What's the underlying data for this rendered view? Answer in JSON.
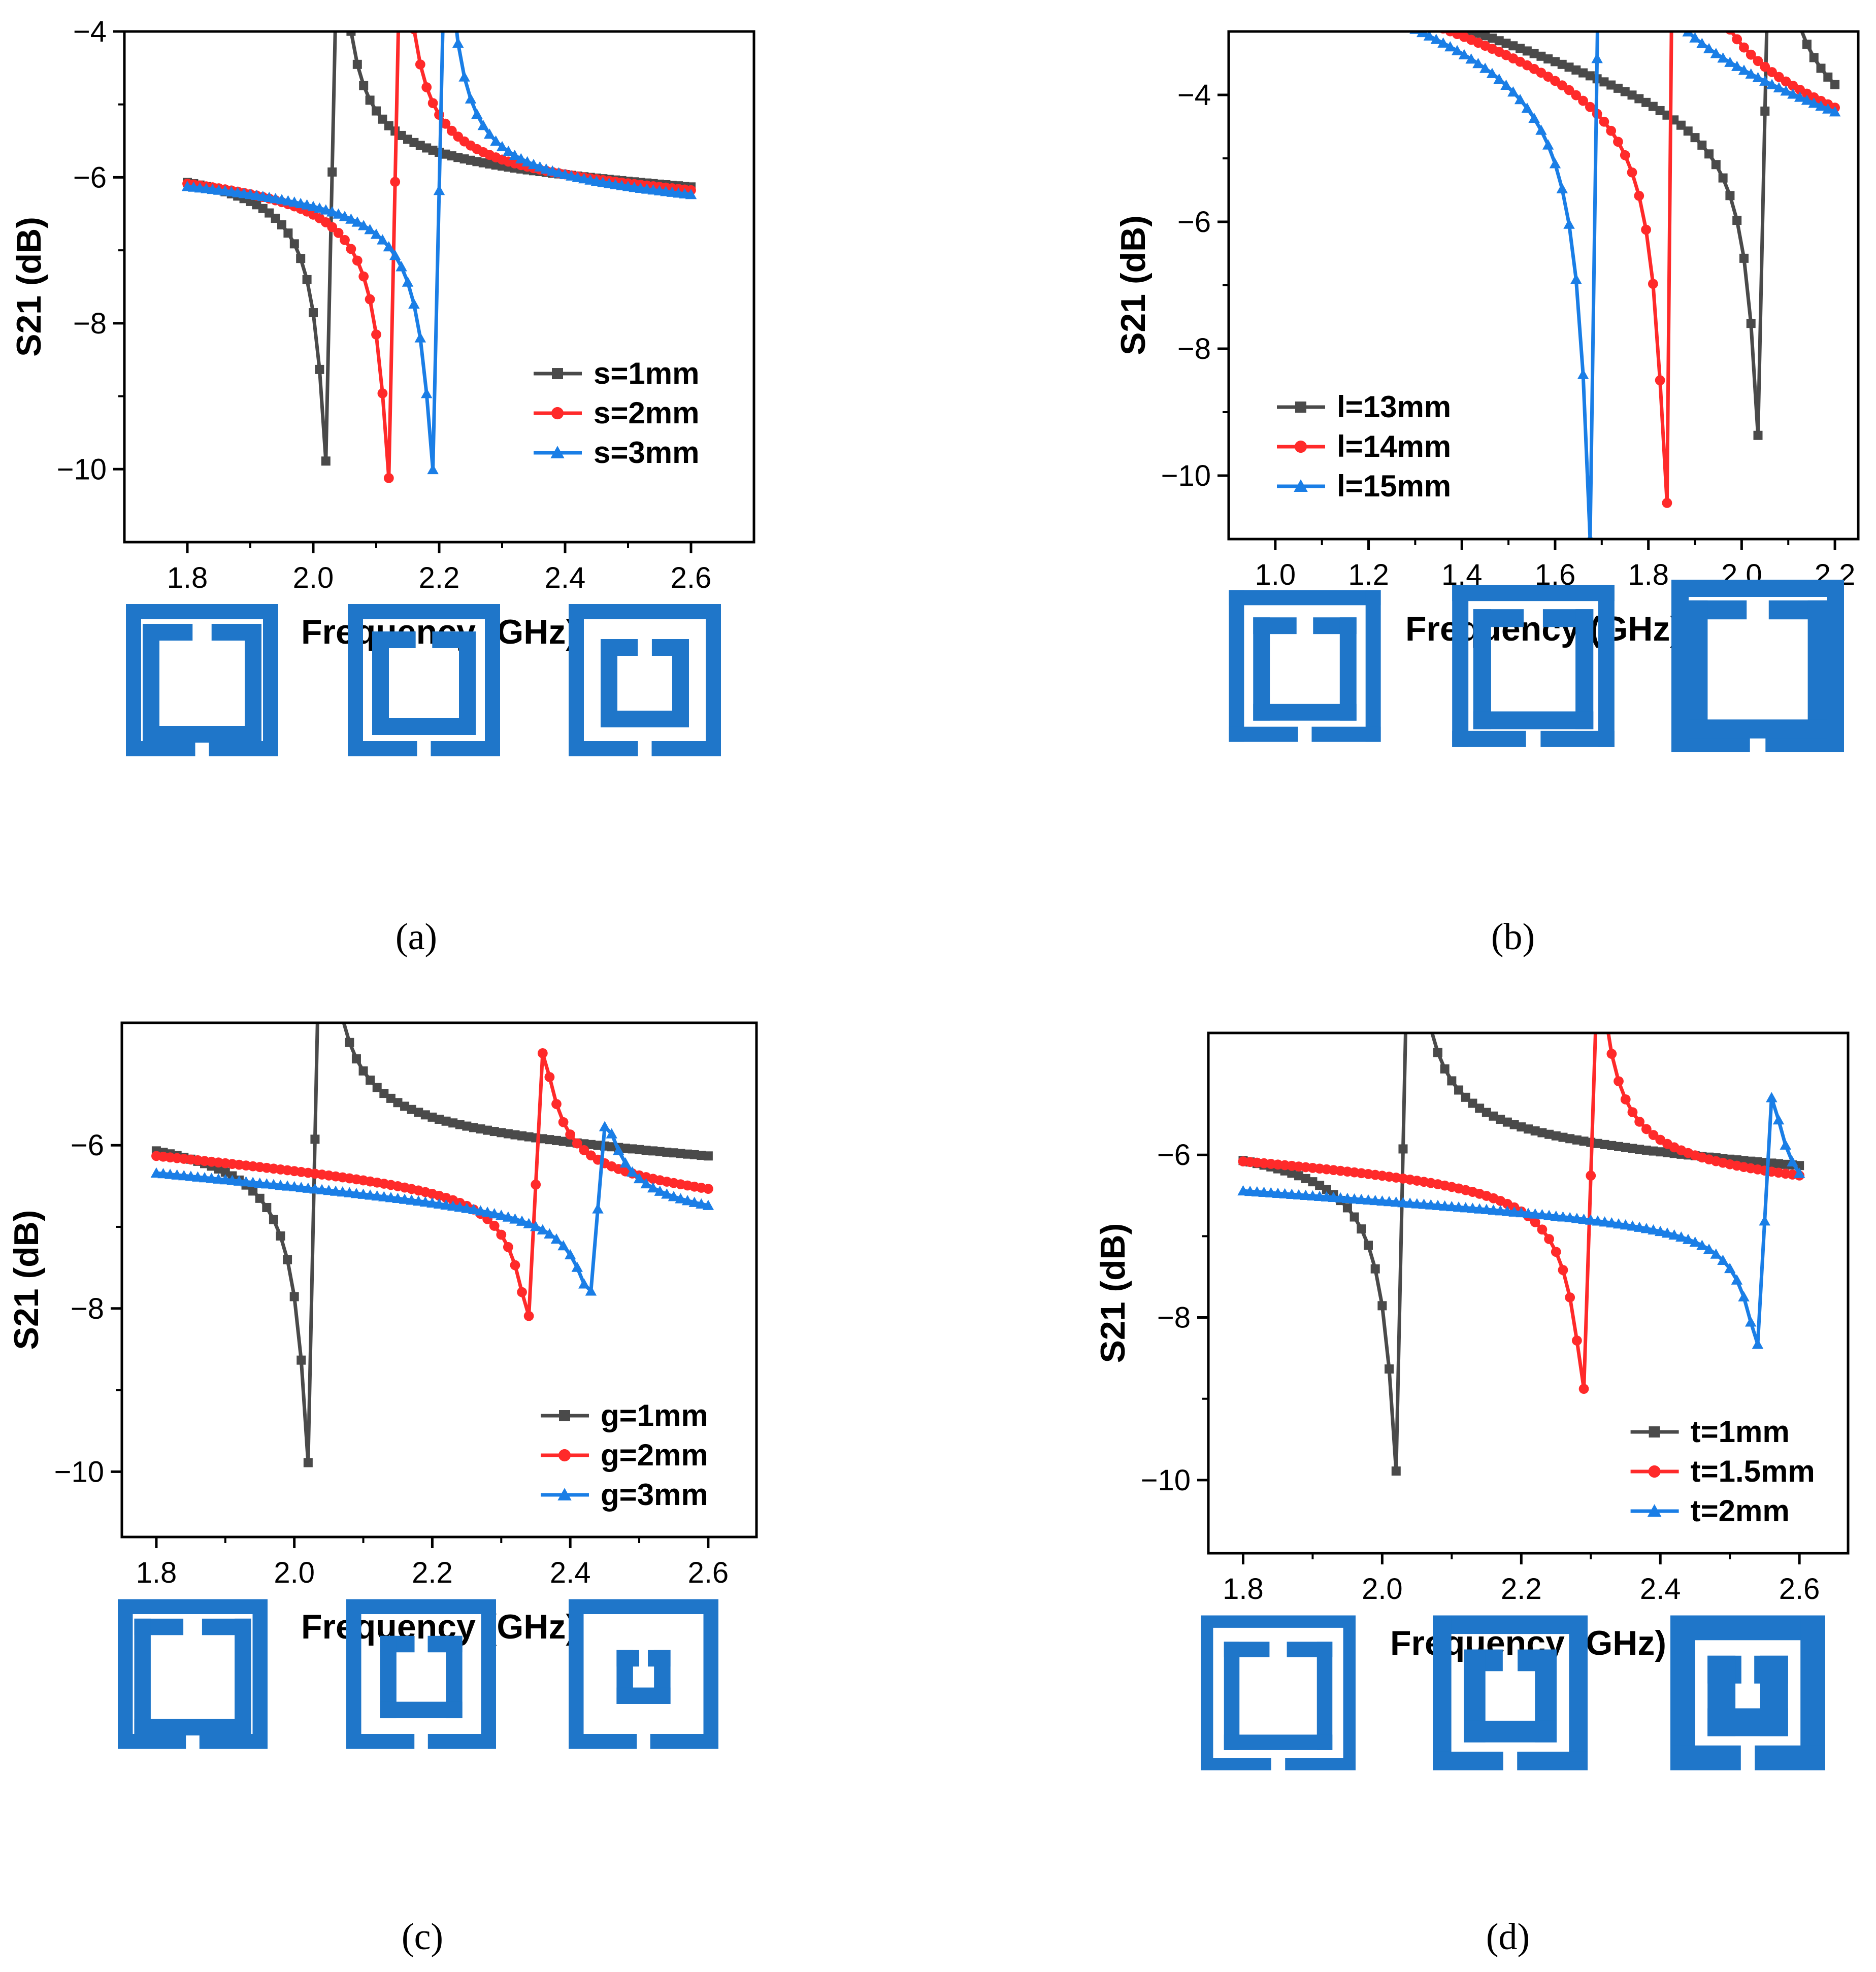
{
  "colors": {
    "series": [
      "#4a4a4a",
      "#ff2a2a",
      "#1a7ee6"
    ],
    "srr": "#1f76c9",
    "axis": "#000000"
  },
  "chart_data": [
    {
      "id": "a",
      "type": "line",
      "caption": "(a)",
      "xlabel": "Frequency (GHz)",
      "ylabel": "S21 (dB)",
      "xlim": [
        1.7,
        2.7
      ],
      "ylim": [
        -11,
        -4
      ],
      "xticks": [
        1.8,
        2.0,
        2.2,
        2.4,
        2.6
      ],
      "xtick_labels": [
        "1.8",
        "2.0",
        "2.2",
        "2.4",
        "2.6"
      ],
      "yticks": [
        -10,
        -8,
        -6,
        -4
      ],
      "ytick_labels": [
        "−10",
        "−8",
        "−6",
        "−4"
      ],
      "legend_position": "center-right",
      "series": [
        {
          "name": "s=1mm",
          "marker": "square",
          "x_range": [
            1.8,
            2.6
          ],
          "offset": -6.02,
          "res": 2.03,
          "A": 0.062,
          "gamma": 0.0075,
          "slope": -0.55
        },
        {
          "name": "s=2mm",
          "marker": "circle",
          "x_range": [
            1.8,
            2.6
          ],
          "offset": -6.1,
          "res": 2.13,
          "A": 0.068,
          "gamma": 0.0082,
          "slope": -0.55
        },
        {
          "name": "s=3mm",
          "marker": "triangle",
          "x_range": [
            1.8,
            2.6
          ],
          "offset": -6.18,
          "res": 2.2,
          "A": 0.066,
          "gamma": 0.0085,
          "slope": -0.55
        }
      ],
      "srr_variants": [
        {
          "outer": 1.0,
          "trace": 0.1,
          "gap": 0.12,
          "inner": 0.78,
          "itrace": 0.11
        },
        {
          "outer": 1.0,
          "trace": 0.1,
          "gap": 0.17,
          "inner": 0.68,
          "itrace": 0.11
        },
        {
          "outer": 1.0,
          "trace": 0.1,
          "gap": 0.22,
          "inner": 0.58,
          "itrace": 0.11
        }
      ]
    },
    {
      "id": "b",
      "type": "line",
      "caption": "(b)",
      "xlabel": "Frequency (GHz)",
      "ylabel": "S21 (dB)",
      "xlim": [
        0.9,
        2.25
      ],
      "ylim": [
        -11,
        -3
      ],
      "xticks": [
        1.0,
        1.2,
        1.4,
        1.6,
        1.8,
        2.0,
        2.2
      ],
      "xtick_labels": [
        "1.0",
        "1.2",
        "1.4",
        "1.6",
        "1.8",
        "2.0",
        "2.2"
      ],
      "yticks": [
        -10,
        -8,
        -6,
        -4
      ],
      "ytick_labels": [
        "−10",
        "−8",
        "−6",
        "−4"
      ],
      "legend_position": "bottom-left",
      "series": [
        {
          "name": "l=13mm",
          "marker": "square",
          "x_range": [
            1.0,
            2.2
          ],
          "offset": -4.6,
          "res": 2.05,
          "A": 0.115,
          "gamma": 0.0105,
          "slope": -2.3
        },
        {
          "name": "l=14mm",
          "marker": "circle",
          "x_range": [
            1.0,
            2.2
          ],
          "offset": -4.6,
          "res": 1.85,
          "A": 0.14,
          "gamma": 0.0105,
          "slope": -2.3
        },
        {
          "name": "l=15mm",
          "marker": "triangle",
          "x_range": [
            1.0,
            2.2
          ],
          "offset": -4.6,
          "res": 1.69,
          "A": 0.17,
          "gamma": 0.0105,
          "slope": -2.3
        }
      ],
      "srr_variants": [
        {
          "outer": 0.88,
          "trace": 0.1,
          "gap": 0.12,
          "inner": 0.68,
          "itrace": 0.11
        },
        {
          "outer": 0.94,
          "trace": 0.1,
          "gap": 0.12,
          "inner": 0.74,
          "itrace": 0.11
        },
        {
          "outer": 1.0,
          "trace": 0.1,
          "gap": 0.12,
          "inner": 0.8,
          "itrace": 0.11
        }
      ]
    },
    {
      "id": "c",
      "type": "line",
      "caption": "(c)",
      "xlabel": "Frequency (GHz)",
      "ylabel": "S21 (dB)",
      "xlim": [
        1.75,
        2.67
      ],
      "ylim": [
        -10.8,
        -4.5
      ],
      "xticks": [
        1.8,
        2.0,
        2.2,
        2.4,
        2.6
      ],
      "xtick_labels": [
        "1.8",
        "2.0",
        "2.2",
        "2.4",
        "2.6"
      ],
      "yticks": [
        -10,
        -8,
        -6
      ],
      "ytick_labels": [
        "−10",
        "−8",
        "−6"
      ],
      "legend_position": "bottom-right",
      "series": [
        {
          "name": "g=1mm",
          "marker": "square",
          "x_range": [
            1.8,
            2.6
          ],
          "offset": -6.02,
          "res": 2.03,
          "A": 0.062,
          "gamma": 0.0075,
          "slope": -0.55
        },
        {
          "name": "g=2mm",
          "marker": "circle",
          "x_range": [
            1.8,
            2.6
          ],
          "offset": -6.37,
          "res": 2.35,
          "A": 0.034,
          "gamma": 0.0105,
          "slope": -0.75
        },
        {
          "name": "g=3mm",
          "marker": "triangle",
          "x_range": [
            1.8,
            2.6
          ],
          "offset": -6.6,
          "res": 2.44,
          "A": 0.026,
          "gamma": 0.0125,
          "slope": -0.75
        }
      ],
      "srr_variants": [
        {
          "outer": 1.0,
          "trace": 0.1,
          "gap": 0.12,
          "inner": 0.78,
          "itrace": 0.11
        },
        {
          "outer": 1.0,
          "trace": 0.1,
          "gap": 0.22,
          "inner": 0.55,
          "itrace": 0.11
        },
        {
          "outer": 1.0,
          "trace": 0.1,
          "gap": 0.32,
          "inner": 0.36,
          "itrace": 0.11
        }
      ]
    },
    {
      "id": "d",
      "type": "line",
      "caption": "(d)",
      "xlabel": "Frequency (GHz)",
      "ylabel": "S21 (dB)",
      "xlim": [
        1.75,
        2.67
      ],
      "ylim": [
        -10.9,
        -4.5
      ],
      "xticks": [
        1.8,
        2.0,
        2.2,
        2.4,
        2.6
      ],
      "xtick_labels": [
        "1.8",
        "2.0",
        "2.2",
        "2.4",
        "2.6"
      ],
      "yticks": [
        -10,
        -8,
        -6
      ],
      "ytick_labels": [
        "−10",
        "−8",
        "−6"
      ],
      "legend_position": "bottom-right",
      "series": [
        {
          "name": "t=1mm",
          "marker": "square",
          "x_range": [
            1.8,
            2.6
          ],
          "offset": -6.02,
          "res": 2.03,
          "A": 0.062,
          "gamma": 0.0075,
          "slope": -0.55
        },
        {
          "name": "t=1.5mm",
          "marker": "circle",
          "x_range": [
            1.8,
            2.6
          ],
          "offset": -6.2,
          "res": 2.3,
          "A": 0.05,
          "gamma": 0.0095,
          "slope": -0.55
        },
        {
          "name": "t=2mm",
          "marker": "triangle",
          "x_range": [
            1.8,
            2.6
          ],
          "offset": -6.62,
          "res": 2.55,
          "A": 0.032,
          "gamma": 0.0105,
          "slope": -0.55
        }
      ],
      "srr_variants": [
        {
          "outer": 1.0,
          "trace": 0.08,
          "gap": 0.15,
          "inner": 0.7,
          "itrace": 0.1
        },
        {
          "outer": 1.0,
          "trace": 0.12,
          "gap": 0.2,
          "inner": 0.6,
          "itrace": 0.14
        },
        {
          "outer": 1.0,
          "trace": 0.16,
          "gap": 0.24,
          "inner": 0.52,
          "itrace": 0.18
        }
      ]
    }
  ]
}
